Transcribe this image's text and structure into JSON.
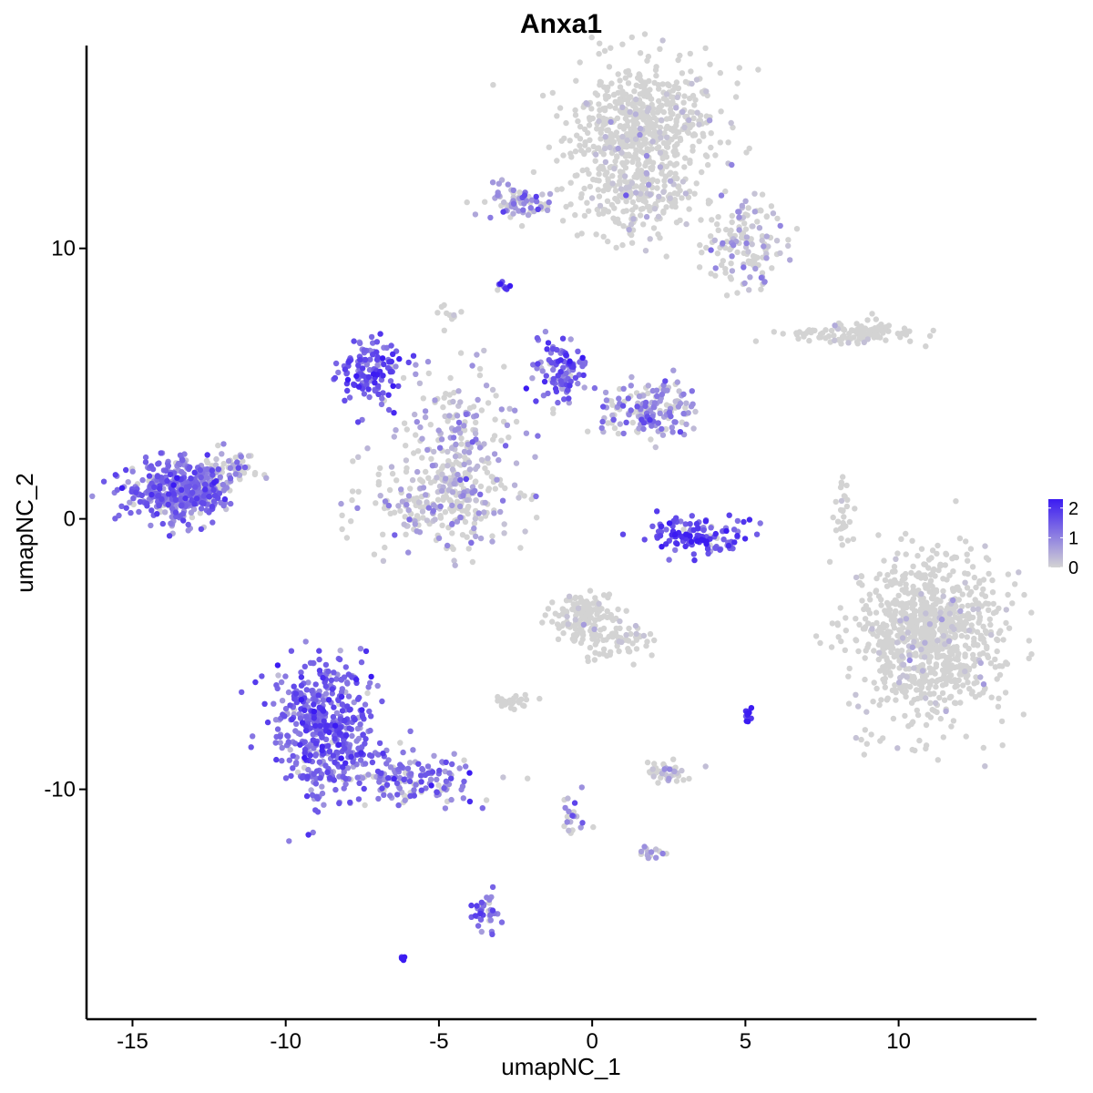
{
  "chart_data": {
    "type": "scatter",
    "title": "Anxa1",
    "xlabel": "umapNC_1",
    "ylabel": "umapNC_2",
    "xlim": [
      -16.5,
      14.5
    ],
    "ylim": [
      -18.5,
      17.5
    ],
    "xticks": [
      -15,
      -10,
      -5,
      0,
      5,
      10
    ],
    "xtick_labels": [
      "-15",
      "-10",
      "-5",
      "0",
      "5",
      "10"
    ],
    "yticks": [
      -10,
      0,
      10
    ],
    "ytick_labels": [
      "-10",
      "0",
      "10"
    ],
    "grid": false,
    "legend": {
      "type": "colorbar",
      "placement": "right",
      "min": 0,
      "max": 2.3,
      "ticks": [
        0,
        1,
        2
      ],
      "tick_labels": [
        "0",
        "1",
        "2"
      ]
    },
    "colors": {
      "low": "#d3d3d3",
      "high": "#3b1bf2"
    },
    "clusters": [
      {
        "name": "top-cluster",
        "cx": 1.8,
        "cy": 14.5,
        "sx": 1.2,
        "sy": 1.1,
        "n": 600,
        "expr": 0.05
      },
      {
        "name": "top-cluster-stem",
        "cx": 1.5,
        "cy": 11.8,
        "sx": 1.0,
        "sy": 0.8,
        "n": 200,
        "expr": 0.15
      },
      {
        "name": "top-right-lobe",
        "cx": 5.0,
        "cy": 10.3,
        "sx": 0.7,
        "sy": 0.9,
        "n": 140,
        "expr": 0.5
      },
      {
        "name": "top-left-arm",
        "cx": -2.5,
        "cy": 11.7,
        "sx": 0.7,
        "sy": 0.35,
        "n": 70,
        "expr": 0.9
      },
      {
        "name": "small-blue",
        "cx": -2.9,
        "cy": 8.6,
        "sx": 0.12,
        "sy": 0.1,
        "n": 10,
        "expr": 2.2
      },
      {
        "name": "small-grey",
        "cx": -4.6,
        "cy": 7.5,
        "sx": 0.2,
        "sy": 0.2,
        "n": 10,
        "expr": 0.0
      },
      {
        "name": "right-strip",
        "cx": 8.6,
        "cy": 6.9,
        "sx": 1.1,
        "sy": 0.18,
        "n": 110,
        "expr": 0.05
      },
      {
        "name": "mid-left-lobe",
        "cx": -7.2,
        "cy": 5.4,
        "sx": 0.5,
        "sy": 0.6,
        "n": 130,
        "expr": 1.5
      },
      {
        "name": "mid-top-lobe",
        "cx": -1.0,
        "cy": 5.5,
        "sx": 0.45,
        "sy": 0.6,
        "n": 100,
        "expr": 1.4
      },
      {
        "name": "mid-right-lobe",
        "cx": 2.0,
        "cy": 4.1,
        "sx": 0.8,
        "sy": 0.5,
        "n": 170,
        "expr": 0.9
      },
      {
        "name": "mid-center",
        "cx": -4.2,
        "cy": 3.3,
        "sx": 0.9,
        "sy": 1.2,
        "n": 160,
        "expr": 0.6
      },
      {
        "name": "mid-bottom-lobe",
        "cx": -5.0,
        "cy": 0.7,
        "sx": 1.3,
        "sy": 0.9,
        "n": 280,
        "expr": 0.5
      },
      {
        "name": "left-cluster",
        "cx": -13.5,
        "cy": 1.0,
        "sx": 0.8,
        "sy": 0.55,
        "n": 420,
        "expr": 1.2
      },
      {
        "name": "left-cluster-tail",
        "cx": -12.0,
        "cy": 1.8,
        "sx": 0.6,
        "sy": 0.4,
        "n": 60,
        "expr": 0.7
      },
      {
        "name": "small-arc",
        "cx": 3.5,
        "cy": -0.6,
        "sx": 0.8,
        "sy": 0.35,
        "n": 120,
        "expr": 1.7
      },
      {
        "name": "right-thin",
        "cx": 8.2,
        "cy": 0.1,
        "sx": 0.15,
        "sy": 0.6,
        "n": 30,
        "expr": 0.0
      },
      {
        "name": "right-big",
        "cx": 11.0,
        "cy": -4.3,
        "sx": 1.2,
        "sy": 1.5,
        "n": 900,
        "expr": 0.04
      },
      {
        "name": "center-lower",
        "cx": -0.2,
        "cy": -3.7,
        "sx": 0.5,
        "sy": 0.45,
        "n": 140,
        "expr": 0.05
      },
      {
        "name": "center-lower-tail",
        "cx": 0.9,
        "cy": -4.6,
        "sx": 0.6,
        "sy": 0.35,
        "n": 60,
        "expr": 0.1
      },
      {
        "name": "small-grey-2",
        "cx": -2.6,
        "cy": -6.8,
        "sx": 0.3,
        "sy": 0.15,
        "n": 30,
        "expr": 0.0
      },
      {
        "name": "bottom-left-big",
        "cx": -8.7,
        "cy": -7.6,
        "sx": 0.8,
        "sy": 1.3,
        "n": 500,
        "expr": 1.4
      },
      {
        "name": "bottom-left-tail",
        "cx": -5.8,
        "cy": -9.6,
        "sx": 1.1,
        "sy": 0.5,
        "n": 150,
        "expr": 1.1
      },
      {
        "name": "small-blue-2",
        "cx": 5.1,
        "cy": -7.3,
        "sx": 0.08,
        "sy": 0.2,
        "n": 12,
        "expr": 1.9
      },
      {
        "name": "small-cluster-3",
        "cx": 2.3,
        "cy": -9.4,
        "sx": 0.4,
        "sy": 0.2,
        "n": 40,
        "expr": 0.4
      },
      {
        "name": "thin-line",
        "cx": -0.6,
        "cy": -10.9,
        "sx": 0.2,
        "sy": 0.6,
        "n": 20,
        "expr": 0.9
      },
      {
        "name": "small-4",
        "cx": 2.1,
        "cy": -12.4,
        "sx": 0.25,
        "sy": 0.12,
        "n": 15,
        "expr": 0.8
      },
      {
        "name": "bottom-small",
        "cx": -3.5,
        "cy": -14.6,
        "sx": 0.2,
        "sy": 0.4,
        "n": 35,
        "expr": 1.2
      },
      {
        "name": "tiny-blue",
        "cx": -6.2,
        "cy": -16.2,
        "sx": 0.06,
        "sy": 0.05,
        "n": 5,
        "expr": 2.0
      }
    ]
  }
}
